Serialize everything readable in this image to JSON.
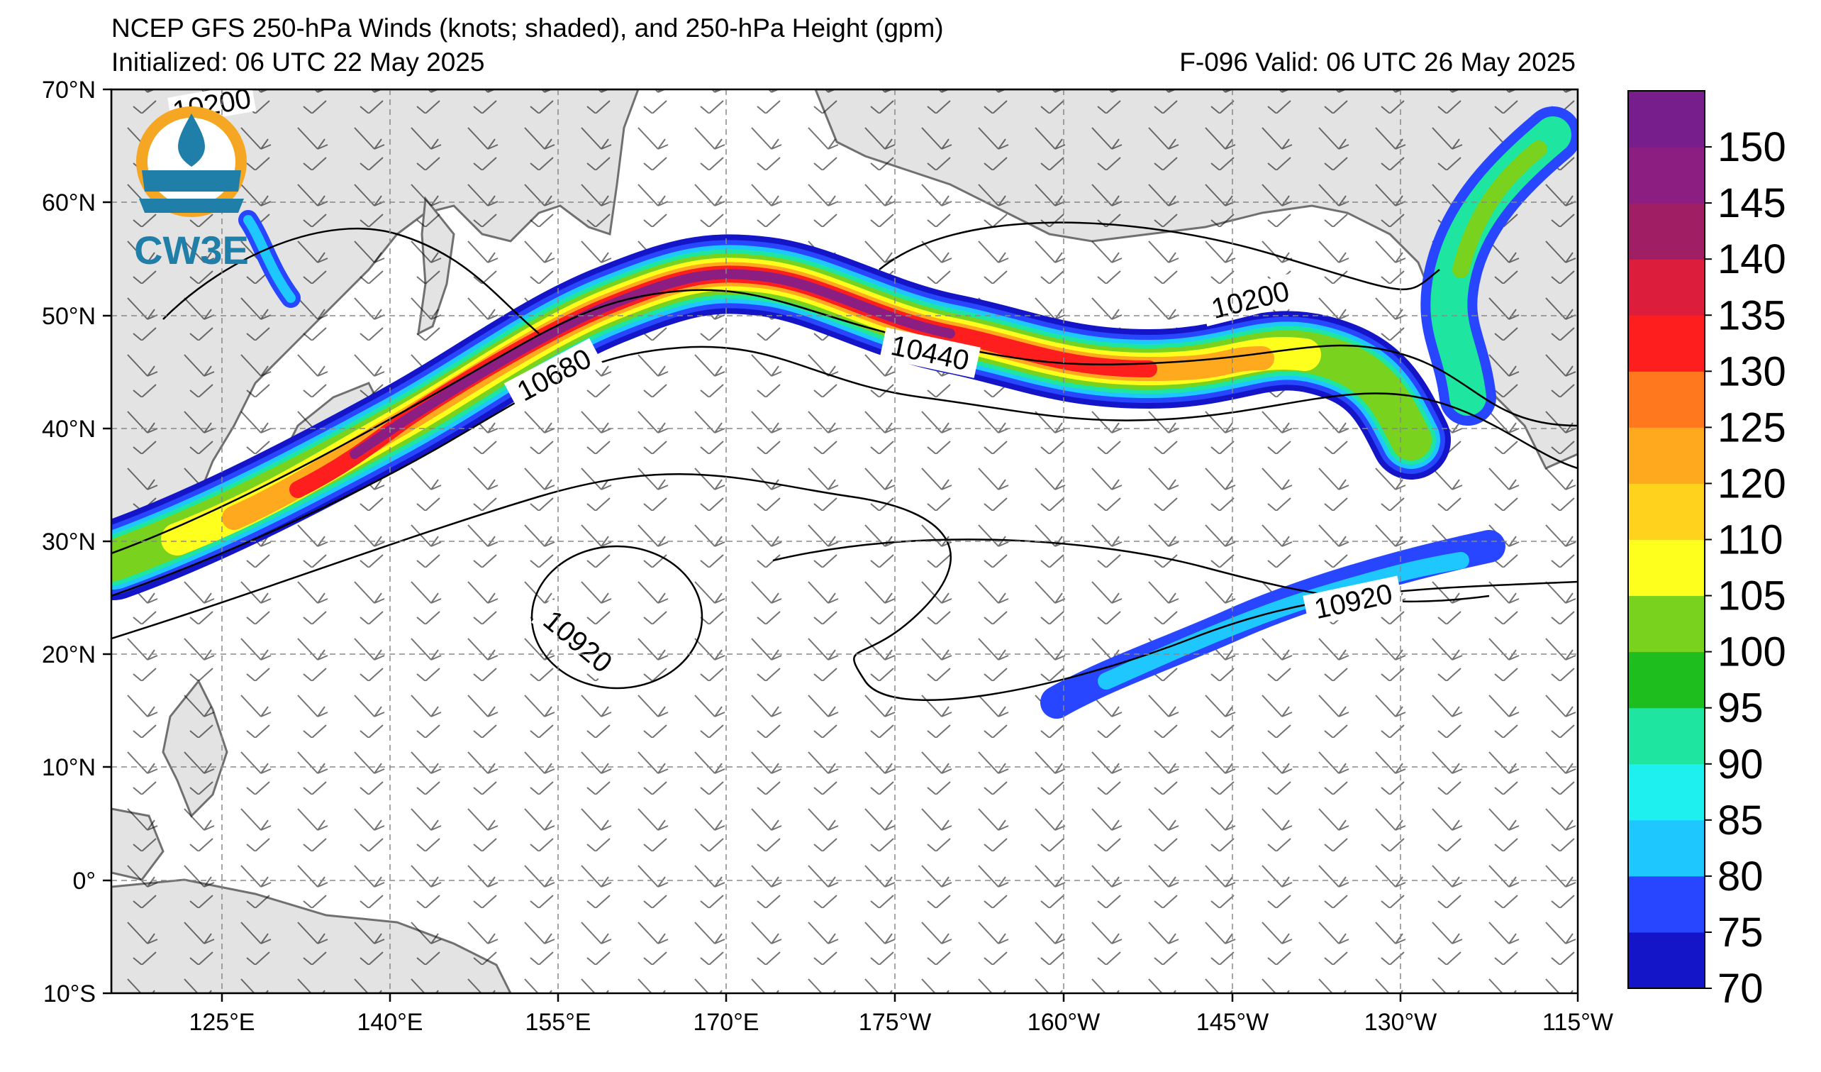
{
  "header": {
    "title": "NCEP GFS 250-hPa Winds (knots; shaded), and 250-hPa Height (gpm)",
    "initialized": "Initialized: 06 UTC 22 May 2025",
    "valid": "F-096  Valid: 06 UTC 26 May 2025"
  },
  "logo": {
    "text": "CW3E",
    "icon": "cw3e-sun-water-logo"
  },
  "map": {
    "lon_labels": [
      "125°E",
      "140°E",
      "155°E",
      "170°E",
      "175°W",
      "160°W",
      "145°W",
      "130°W",
      "115°W"
    ],
    "lat_labels": [
      "70°N",
      "60°N",
      "50°N",
      "40°N",
      "30°N",
      "20°N",
      "10°N",
      "0°",
      "10°S"
    ],
    "contour_labels": [
      "10200",
      "10680",
      "10440",
      "10200",
      "10920",
      "10920"
    ],
    "land_color": "#e3e3e3",
    "coast_color": "#707070"
  },
  "colorbar": {
    "ticks": [
      "150",
      "145",
      "140",
      "135",
      "130",
      "125",
      "120",
      "110",
      "105",
      "100",
      "95",
      "90",
      "85",
      "80",
      "75",
      "70"
    ],
    "colors": [
      "#1414c8",
      "#2846ff",
      "#1ec8ff",
      "#1ef0f0",
      "#1ee6a0",
      "#1ebe1e",
      "#78d21e",
      "#ffff1e",
      "#ffd21e",
      "#ffaa1e",
      "#ff781e",
      "#ff1e1e",
      "#dc1e3c",
      "#a01e64",
      "#8c1e82",
      "#781e8c"
    ]
  }
}
